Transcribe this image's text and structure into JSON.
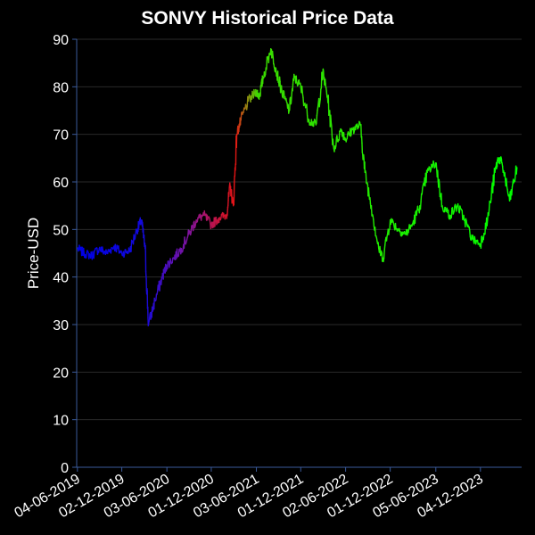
{
  "chart_data": {
    "type": "line",
    "title": "SONVY Historical Price Data",
    "xlabel": "",
    "ylabel": "Price-USD",
    "ylim": [
      0,
      90
    ],
    "yticks": [
      0,
      10,
      20,
      30,
      40,
      50,
      60,
      70,
      80,
      90
    ],
    "xticks": [
      "04-06-2019",
      "02-12-2019",
      "03-06-2020",
      "01-12-2020",
      "03-06-2021",
      "01-12-2021",
      "02-06-2022",
      "01-12-2022",
      "05-06-2023",
      "04-12-2023"
    ],
    "grid": true,
    "legend": "none",
    "series": [
      {
        "name": "SONVY",
        "color_note": "line color shifts blue → purple → red → olive → green over time",
        "x": [
          "2019-06-04",
          "2019-07-01",
          "2019-08-01",
          "2019-09-01",
          "2019-10-01",
          "2019-11-01",
          "2019-12-02",
          "2020-01-02",
          "2020-02-03",
          "2020-02-20",
          "2020-03-06",
          "2020-03-20",
          "2020-04-15",
          "2020-05-15",
          "2020-06-03",
          "2020-07-01",
          "2020-08-01",
          "2020-09-01",
          "2020-10-01",
          "2020-11-01",
          "2020-12-01",
          "2021-01-04",
          "2021-02-01",
          "2021-02-16",
          "2021-03-01",
          "2021-03-15",
          "2021-04-01",
          "2021-05-01",
          "2021-06-03",
          "2021-06-15",
          "2021-07-01",
          "2021-08-01",
          "2021-08-20",
          "2021-09-15",
          "2021-10-15",
          "2021-11-05",
          "2021-12-01",
          "2022-01-04",
          "2022-02-01",
          "2022-03-01",
          "2022-03-20",
          "2022-04-15",
          "2022-05-15",
          "2022-06-02",
          "2022-07-01",
          "2022-08-01",
          "2022-08-20",
          "2022-09-15",
          "2022-10-15",
          "2022-11-01",
          "2022-12-01",
          "2023-01-03",
          "2023-02-01",
          "2023-03-01",
          "2023-04-01",
          "2023-05-01",
          "2023-06-05",
          "2023-07-01",
          "2023-08-01",
          "2023-09-01",
          "2023-10-01",
          "2023-11-01",
          "2023-12-04",
          "2024-01-02",
          "2024-02-01",
          "2024-02-15",
          "2024-03-01",
          "2024-04-01",
          "2024-05-01"
        ],
        "values": [
          46,
          45,
          44.5,
          46,
          45,
          46.5,
          45,
          45.5,
          50,
          52,
          46,
          30,
          35,
          40,
          42.5,
          44,
          46,
          49,
          52,
          53,
          51,
          52.5,
          53,
          59,
          55,
          70,
          73,
          77,
          79,
          78,
          82,
          88,
          84,
          79,
          75,
          82,
          80,
          73,
          72,
          83,
          78,
          67,
          71,
          69,
          71,
          72,
          62,
          55,
          46,
          44,
          52,
          50,
          49,
          51,
          55,
          62,
          64,
          55,
          53,
          55,
          52,
          48,
          47,
          52,
          62,
          65,
          64,
          56,
          63
        ]
      }
    ]
  }
}
